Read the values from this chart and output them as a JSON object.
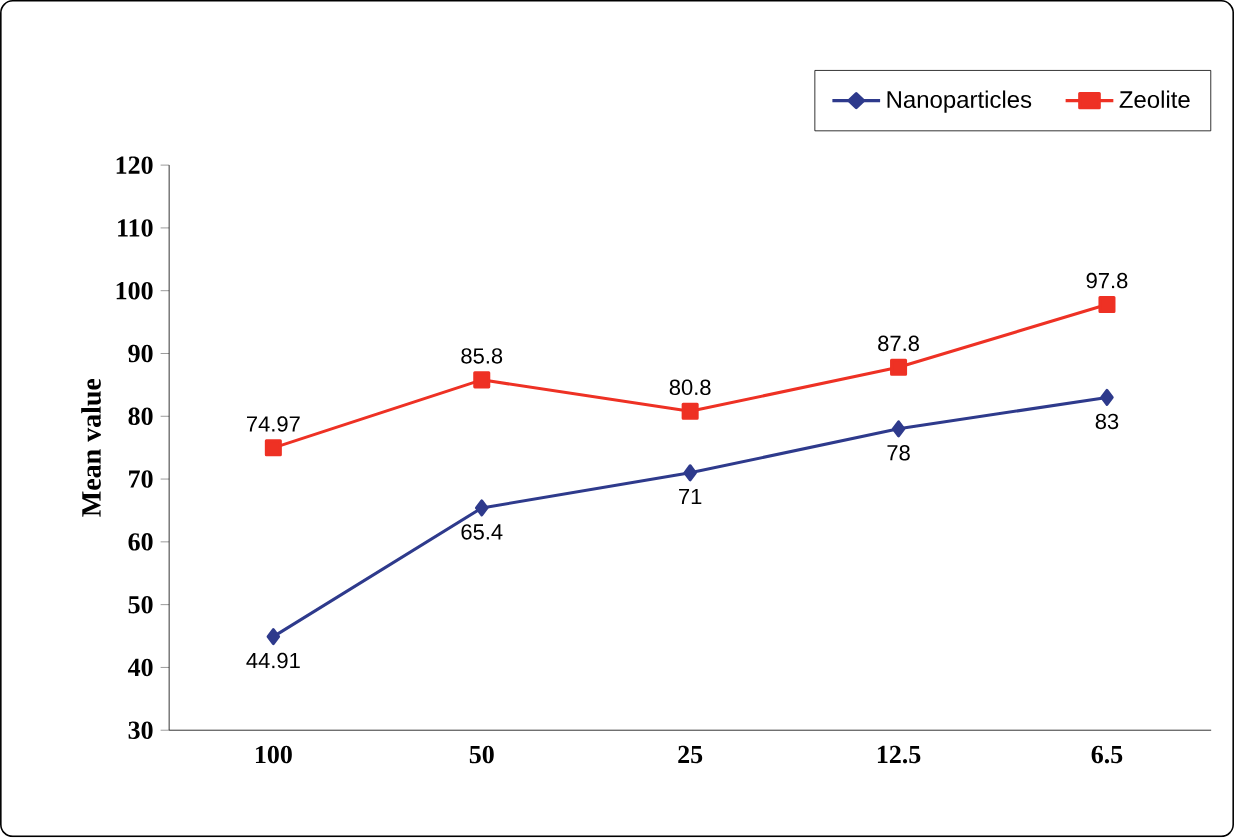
{
  "chart_data": {
    "type": "line",
    "ylabel": "Mean value",
    "categories": [
      "100",
      "50",
      "25",
      "12.5",
      "6.5"
    ],
    "series": [
      {
        "name": "Nanoparticles",
        "color": "#2e3a8c",
        "marker": "diamond",
        "values": [
          44.91,
          65.4,
          71,
          78,
          83
        ]
      },
      {
        "name": "Zeolite",
        "color": "#ee3124",
        "marker": "square",
        "values": [
          74.97,
          85.8,
          80.8,
          87.8,
          97.8
        ]
      }
    ],
    "ylim": [
      30,
      120
    ],
    "yticks": [
      30,
      40,
      50,
      60,
      70,
      80,
      90,
      100,
      110,
      120
    ],
    "data_labels": true,
    "legend": "top right",
    "grid": false
  }
}
